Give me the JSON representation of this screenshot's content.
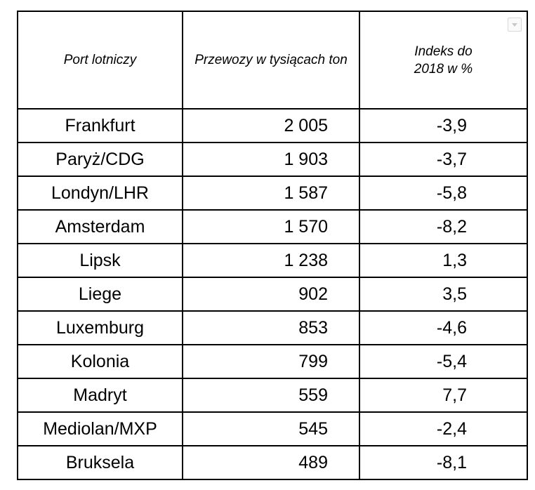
{
  "table": {
    "headers": {
      "port": "Port lotniczy",
      "volume": "Przewozy w tysiącach ton",
      "index": "Indeks do 2018 w %"
    },
    "rows": [
      {
        "port": "Frankfurt",
        "volume": "2 005",
        "index": "-3,9"
      },
      {
        "port": "Paryż/CDG",
        "volume": "1 903",
        "index": "-3,7"
      },
      {
        "port": "Londyn/LHR",
        "volume": "1 587",
        "index": "-5,8"
      },
      {
        "port": "Amsterdam",
        "volume": "1 570",
        "index": "-8,2"
      },
      {
        "port": "Lipsk",
        "volume": "1 238",
        "index": "1,3"
      },
      {
        "port": "Liege",
        "volume": "902",
        "index": "3,5"
      },
      {
        "port": "Luxemburg",
        "volume": "853",
        "index": "-4,6"
      },
      {
        "port": "Kolonia",
        "volume": "799",
        "index": "-5,4"
      },
      {
        "port": "Madryt",
        "volume": "559",
        "index": "7,7"
      },
      {
        "port": "Mediolan/MXP",
        "volume": "545",
        "index": "-2,4"
      },
      {
        "port": "Bruksela",
        "volume": "489",
        "index": "-8,1"
      }
    ]
  },
  "icons": {
    "dropdown": "chevron-down-icon"
  },
  "colors": {
    "text": "#000000",
    "border": "#000000",
    "background": "#ffffff"
  }
}
